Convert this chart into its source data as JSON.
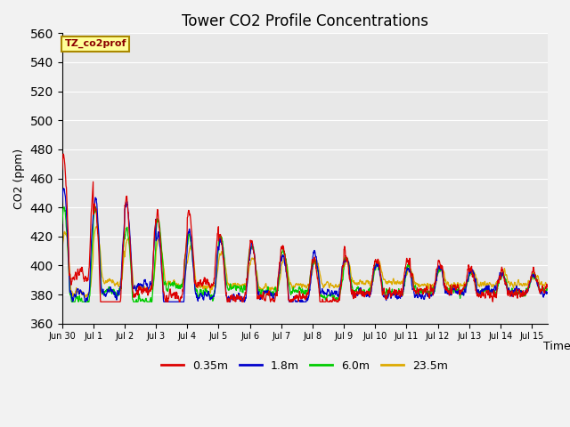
{
  "title": "Tower CO2 Profile Concentrations",
  "xlabel": "Time",
  "ylabel": "CO2 (ppm)",
  "ylim": [
    360,
    560
  ],
  "yticks": [
    360,
    380,
    400,
    420,
    440,
    460,
    480,
    500,
    520,
    540,
    560
  ],
  "annotation_label": "TZ_co2prof",
  "line_colors": {
    "0.35m": "#dd0000",
    "1.8m": "#0000cc",
    "6.0m": "#00cc00",
    "23.5m": "#ddaa00"
  },
  "plot_bg": "#e8e8e8",
  "fig_bg": "#f2f2f2",
  "x_tick_labels": [
    "Jun 30",
    "Jul 1",
    "Jul 2",
    "Jul 3",
    "Jul 4",
    "Jul 5",
    "Jul 6",
    "Jul 7",
    "Jul 8",
    "Jul 9",
    "Jul 10",
    "Jul 11",
    "Jul 12",
    "Jul 13",
    "Jul 14",
    "Jul 15"
  ],
  "legend_labels": [
    "0.35m",
    "1.8m",
    "6.0m",
    "23.5m"
  ]
}
